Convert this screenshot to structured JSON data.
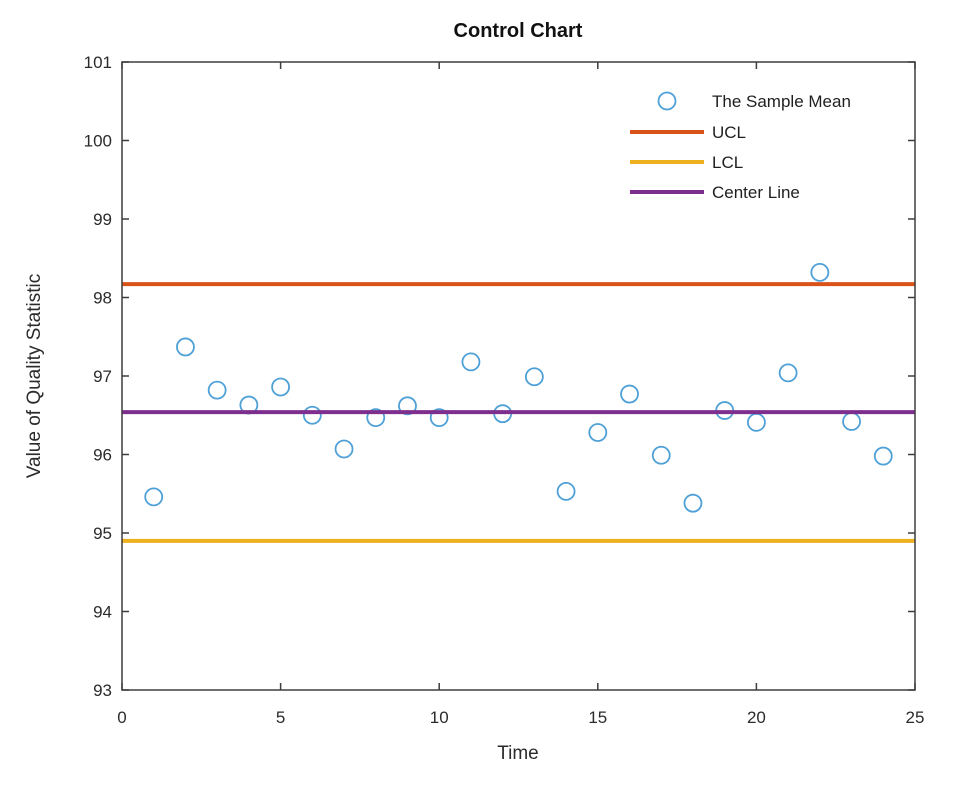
{
  "figure": {
    "title": "Control Chart",
    "xlabel": "Time",
    "ylabel": "Value of Quality Statistic"
  },
  "chart_data": {
    "type": "scatter",
    "title": "Control Chart",
    "xlabel": "Time",
    "ylabel": "Value of Quality Statistic",
    "xlim": [
      0,
      25
    ],
    "ylim": [
      93,
      101
    ],
    "xticks": [
      0,
      5,
      10,
      15,
      20,
      25
    ],
    "yticks": [
      93,
      94,
      95,
      96,
      97,
      98,
      99,
      100,
      101
    ],
    "grid": false,
    "legend_position": "top-right-inside",
    "axis_color": "#3d3d3d",
    "text_color": "#2b2b2b",
    "series": [
      {
        "name": "The Sample Mean",
        "kind": "scatter",
        "marker": "open-circle",
        "color": "#4EA0D7",
        "x": [
          1,
          2,
          3,
          4,
          5,
          6,
          7,
          8,
          9,
          10,
          11,
          12,
          13,
          14,
          15,
          16,
          17,
          18,
          19,
          20,
          21,
          22,
          23,
          24
        ],
        "y": [
          95.46,
          97.37,
          96.82,
          96.63,
          96.86,
          96.5,
          96.07,
          96.47,
          96.62,
          96.47,
          97.18,
          96.52,
          96.99,
          95.53,
          96.28,
          96.77,
          95.99,
          95.38,
          96.56,
          96.41,
          97.04,
          98.32,
          96.42,
          95.98
        ]
      },
      {
        "name": "UCL",
        "kind": "hline",
        "value": 98.17,
        "color": "#D95319"
      },
      {
        "name": "LCL",
        "kind": "hline",
        "value": 94.9,
        "color": "#EDB120"
      },
      {
        "name": "Center Line",
        "kind": "hline",
        "value": 96.54,
        "color": "#7E2F8E"
      }
    ]
  }
}
